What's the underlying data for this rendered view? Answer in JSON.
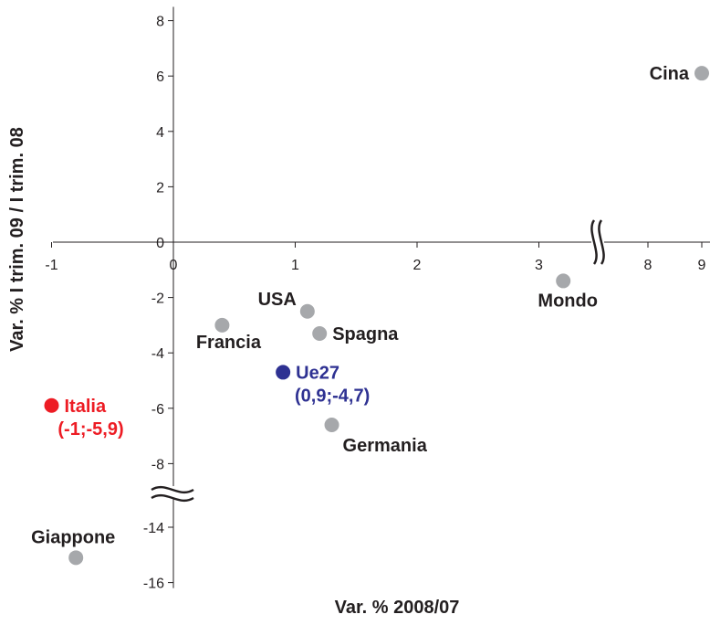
{
  "chart_data": {
    "type": "scatter",
    "xlabel": "Var. % 2008/07",
    "ylabel": "Var. % I trim. 09 / I trim. 08",
    "x_ticks": [
      "-1",
      "0",
      "1",
      "2",
      "3",
      "8",
      "9"
    ],
    "y_ticks": [
      "8",
      "6",
      "4",
      "2",
      "0",
      "-2",
      "-4",
      "-6",
      "-8",
      "-14",
      "-16"
    ],
    "x_axis_break": {
      "from": 3.5,
      "to": 7.5
    },
    "y_axis_break": {
      "from": -9,
      "to": -13
    },
    "grid": false,
    "legend": "none",
    "colors": {
      "default": "#a6a8ab",
      "highlight_red": "#ed1c24",
      "highlight_blue": "#2e3192",
      "text": "#231f20"
    },
    "points": [
      {
        "label": "Cina",
        "x": 9.0,
        "y": 6.1,
        "color": "#a6a8ab"
      },
      {
        "label": "Mondo",
        "x": 3.2,
        "y": -1.4,
        "color": "#a6a8ab"
      },
      {
        "label": "USA",
        "x": 1.1,
        "y": -2.5,
        "color": "#a6a8ab"
      },
      {
        "label": "Spagna",
        "x": 1.2,
        "y": -3.3,
        "color": "#a6a8ab"
      },
      {
        "label": "Francia",
        "x": 0.4,
        "y": -3.0,
        "color": "#a6a8ab"
      },
      {
        "label": "Ue27",
        "sublabel": "(0,9;-4,7)",
        "x": 0.9,
        "y": -4.7,
        "color": "#2e3192"
      },
      {
        "label": "Italia",
        "sublabel": "(-1;-5,9)",
        "x": -1.0,
        "y": -5.9,
        "color": "#ed1c24"
      },
      {
        "label": "Germania",
        "x": 1.3,
        "y": -6.6,
        "color": "#a6a8ab"
      },
      {
        "label": "Giappone",
        "x": -0.8,
        "y": -15.1,
        "color": "#a6a8ab"
      }
    ]
  }
}
